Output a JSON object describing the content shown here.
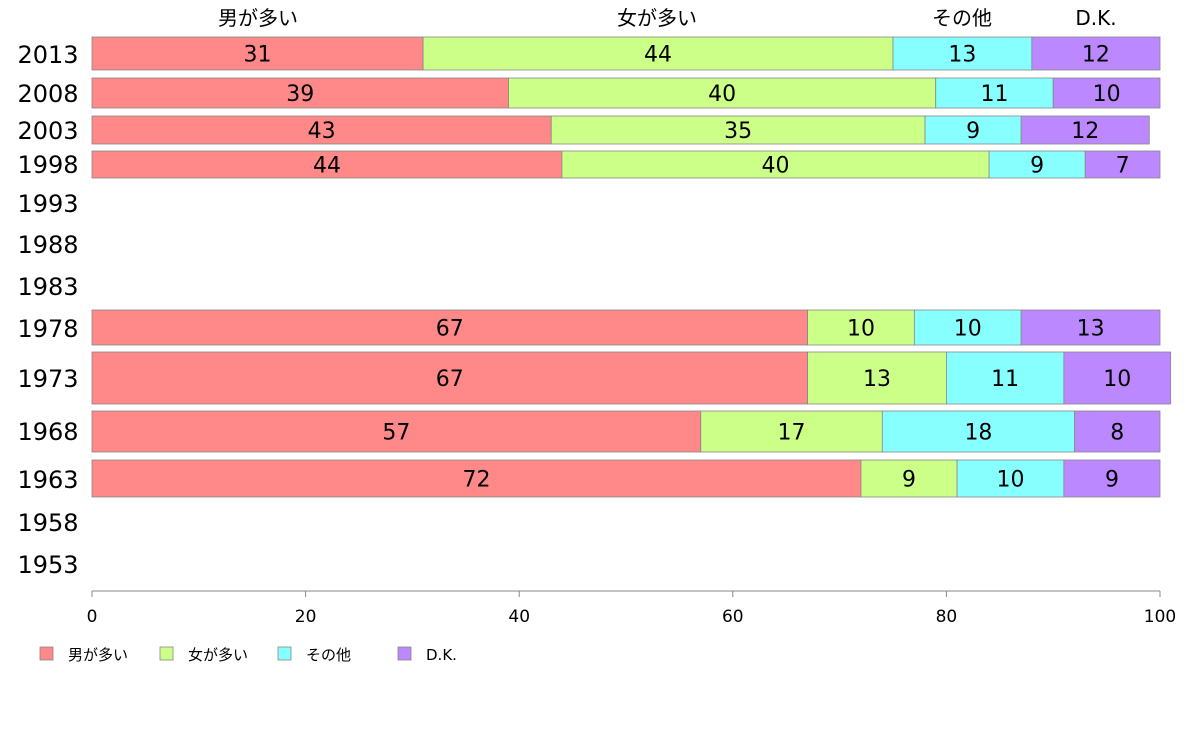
{
  "chart_data": {
    "type": "bar",
    "orientation": "horizontal",
    "stacked": true,
    "categories": [
      "2013",
      "2008",
      "2003",
      "1998",
      "1993",
      "1988",
      "1983",
      "1978",
      "1973",
      "1968",
      "1963",
      "1958",
      "1953"
    ],
    "series": [
      {
        "name": "男が多い",
        "color": "#ff8888",
        "values": [
          31,
          39,
          43,
          44,
          null,
          null,
          null,
          67,
          67,
          57,
          72,
          null,
          null
        ]
      },
      {
        "name": "女が多い",
        "color": "#ccff88",
        "values": [
          44,
          40,
          35,
          40,
          null,
          null,
          null,
          10,
          13,
          17,
          9,
          null,
          null
        ]
      },
      {
        "name": "その他",
        "color": "#88ffff",
        "values": [
          13,
          11,
          9,
          9,
          null,
          null,
          null,
          10,
          11,
          18,
          10,
          null,
          null
        ]
      },
      {
        "name": "D.K.",
        "color": "#bb88ff",
        "values": [
          12,
          10,
          12,
          7,
          null,
          null,
          null,
          13,
          10,
          8,
          9,
          null,
          null
        ]
      }
    ],
    "top_labels": [
      "男が多い",
      "女が多い",
      "その他",
      "D.K."
    ],
    "x_ticks": [
      "0",
      "20",
      "40",
      "60",
      "80",
      "100"
    ],
    "xlim": [
      0,
      100
    ],
    "grid": false,
    "legend_position": "bottom-left"
  }
}
